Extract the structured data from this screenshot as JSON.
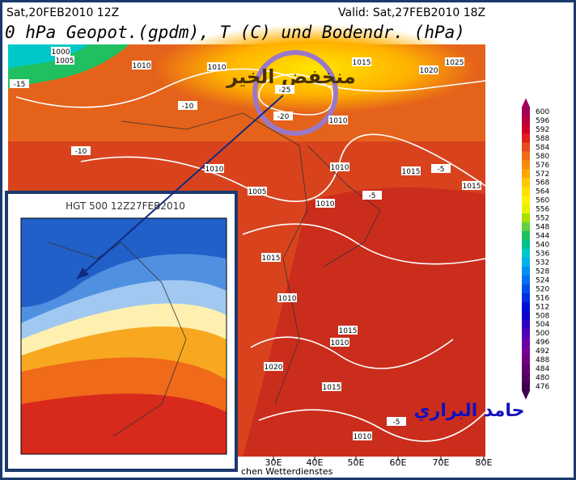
{
  "header": {
    "run": "Sat,20FEB2010 12Z",
    "valid": "Valid: Sat,27FEB2010 18Z",
    "title": "0 hPa Geopot.(gpdm), T (C) und Bodendr. (hPa)"
  },
  "annotations": {
    "low_name": "منخفض الخير",
    "author": "حامد البراري"
  },
  "map": {
    "contour_labels": [
      "1000",
      "1005",
      "1010",
      "1010",
      "-25",
      "-20",
      "1015",
      "1020",
      "1025",
      "1010",
      "-10",
      "1010",
      "1005",
      "1010",
      "1015",
      "-5",
      "1015",
      "1010",
      "-5",
      "1015",
      "1010",
      "1015",
      "1010",
      "1020",
      "1015",
      "1010",
      "-5",
      "-10",
      "-15"
    ],
    "x_axis_labels": [
      "30E",
      "40E",
      "50E",
      "60E",
      "70E",
      "80E"
    ],
    "footer": "chen Wetterdienstes"
  },
  "inset": {
    "title": "HGT 500 12Z27FEB2010"
  },
  "colorbar": {
    "labels": [
      600,
      596,
      592,
      588,
      584,
      580,
      576,
      572,
      568,
      564,
      560,
      556,
      552,
      548,
      544,
      540,
      536,
      532,
      528,
      524,
      520,
      516,
      512,
      508,
      504,
      500,
      496,
      492,
      488,
      484,
      480,
      476
    ],
    "colors": [
      "#a0005a",
      "#b8003c",
      "#d0002a",
      "#e01e1e",
      "#e84a20",
      "#f06a1a",
      "#f88a10",
      "#ffa800",
      "#ffc800",
      "#ffe000",
      "#fff000",
      "#e8f000",
      "#a8e000",
      "#60d040",
      "#20c060",
      "#00c090",
      "#00c8c8",
      "#00b0e8",
      "#0090f0",
      "#0070f0",
      "#0050e8",
      "#0030e0",
      "#0010d8",
      "#1000c8",
      "#3000c0",
      "#5000b8",
      "#6800a8",
      "#780098",
      "#700080",
      "#600070",
      "#500060",
      "#400050"
    ]
  }
}
